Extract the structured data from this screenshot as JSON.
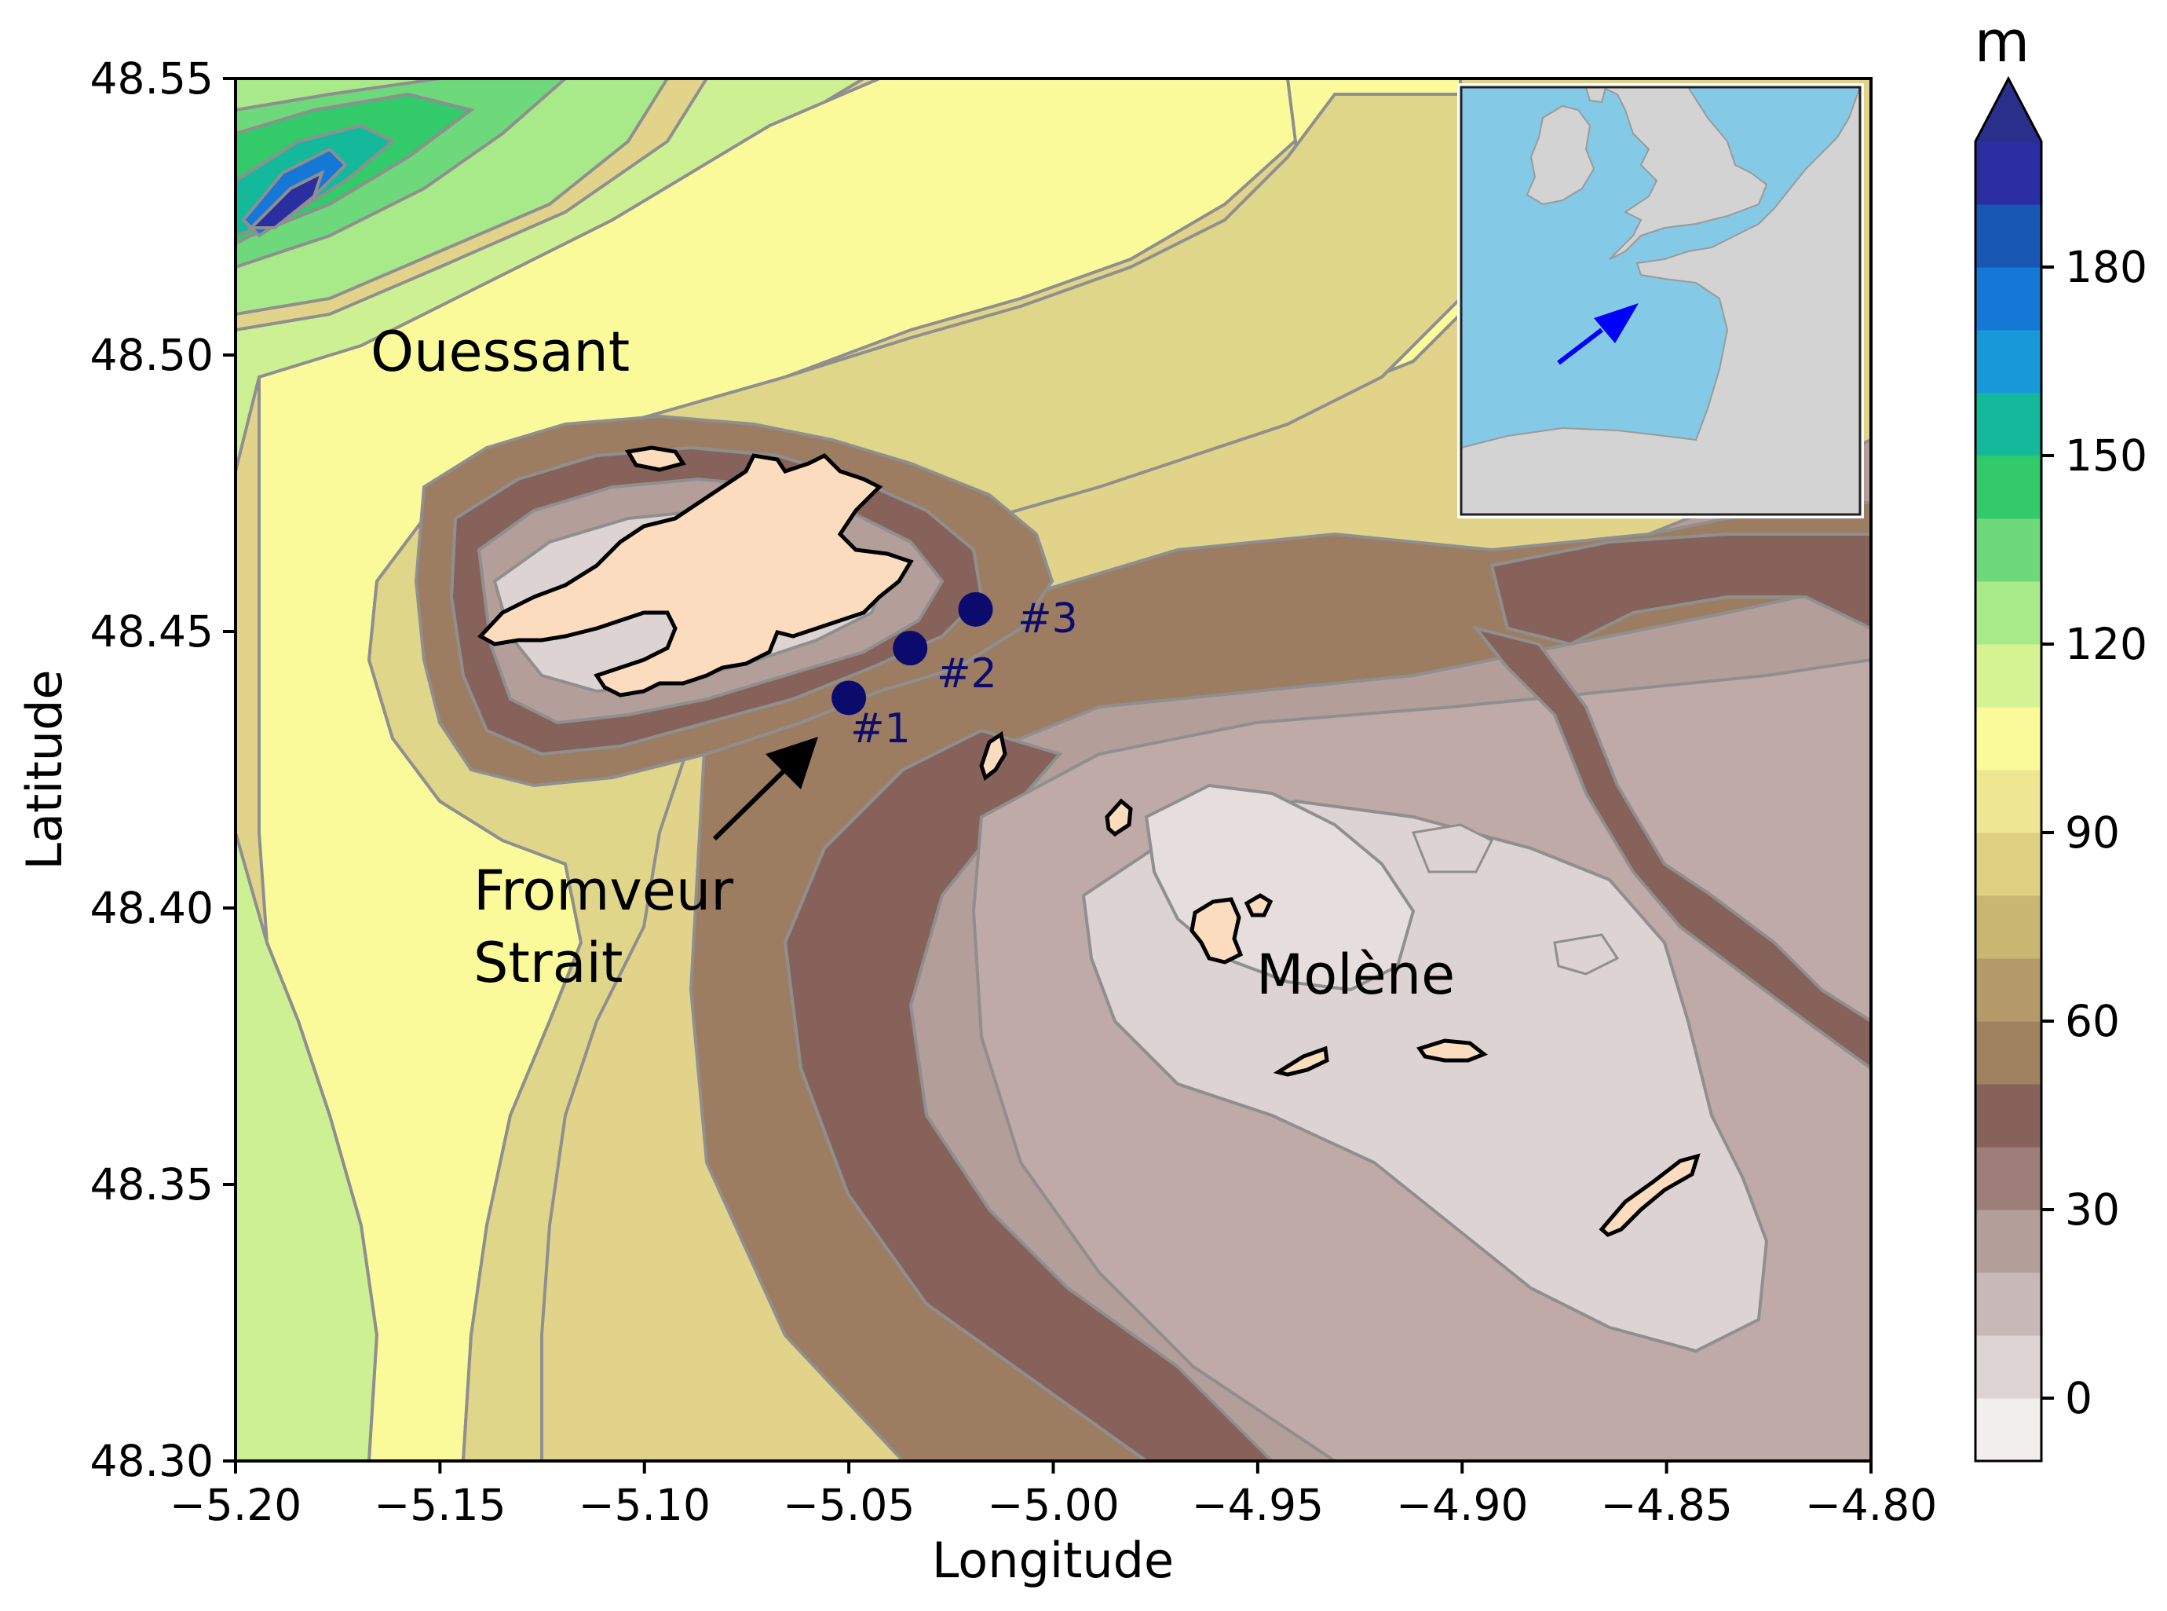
{
  "map": {
    "xlabel": "Longitude",
    "ylabel": "Latitude",
    "xlim": [
      -5.2,
      -4.8
    ],
    "ylim": [
      48.3,
      48.55
    ],
    "xticks": [
      {
        "value": -5.2,
        "label": "−5.20"
      },
      {
        "value": -5.15,
        "label": "−5.15"
      },
      {
        "value": -5.1,
        "label": "−5.10"
      },
      {
        "value": -5.05,
        "label": "−5.05"
      },
      {
        "value": -5.0,
        "label": "−5.00"
      },
      {
        "value": -4.95,
        "label": "−4.95"
      },
      {
        "value": -4.9,
        "label": "−4.90"
      },
      {
        "value": -4.85,
        "label": "−4.85"
      },
      {
        "value": -4.8,
        "label": "−4.80"
      }
    ],
    "yticks": [
      {
        "value": 48.3,
        "label": "48.30"
      },
      {
        "value": 48.35,
        "label": "48.35"
      },
      {
        "value": 48.4,
        "label": "48.40"
      },
      {
        "value": 48.45,
        "label": "48.45"
      },
      {
        "value": 48.5,
        "label": "48.50"
      },
      {
        "value": 48.55,
        "label": "48.55"
      }
    ],
    "place_labels": {
      "ouessant": "Ouessant",
      "fromveur_line1": "Fromveur",
      "fromveur_line2": "Strait",
      "molene": "Molène"
    },
    "stations": [
      {
        "label": "#1",
        "lon": -5.05,
        "lat": 48.438
      },
      {
        "label": "#2",
        "lon": -5.035,
        "lat": 48.447
      },
      {
        "label": "#3",
        "lon": -5.019,
        "lat": 48.454
      }
    ],
    "station_color": "#0b0b6e",
    "land_color": "#fcdcbe"
  },
  "colorbar": {
    "unit": "m",
    "range": [
      -10,
      200
    ],
    "extend": "max",
    "ticks": [
      {
        "value": 0,
        "label": "0"
      },
      {
        "value": 30,
        "label": "30"
      },
      {
        "value": 60,
        "label": "60"
      },
      {
        "value": 90,
        "label": "90"
      },
      {
        "value": 120,
        "label": "120"
      },
      {
        "value": 150,
        "label": "150"
      },
      {
        "value": 180,
        "label": "180"
      }
    ],
    "colors": [
      "#f2eeee",
      "#ded4d4",
      "#c8b8b8",
      "#b49e9a",
      "#9d7e78",
      "#87625a",
      "#a08160",
      "#b49a68",
      "#c9b671",
      "#ddd080",
      "#eee690",
      "#fbfa9a",
      "#d6f391",
      "#a8e98a",
      "#6ed97a",
      "#33ca6a",
      "#14b89a",
      "#1898d8",
      "#1578d6",
      "#1856b4",
      "#2a2ea0"
    ],
    "extend_color": "#2b2f8c"
  },
  "inset": {
    "sea_color": "#84cae6",
    "land_color": "#d3d3d3",
    "arrow_color": "#0000ff"
  }
}
